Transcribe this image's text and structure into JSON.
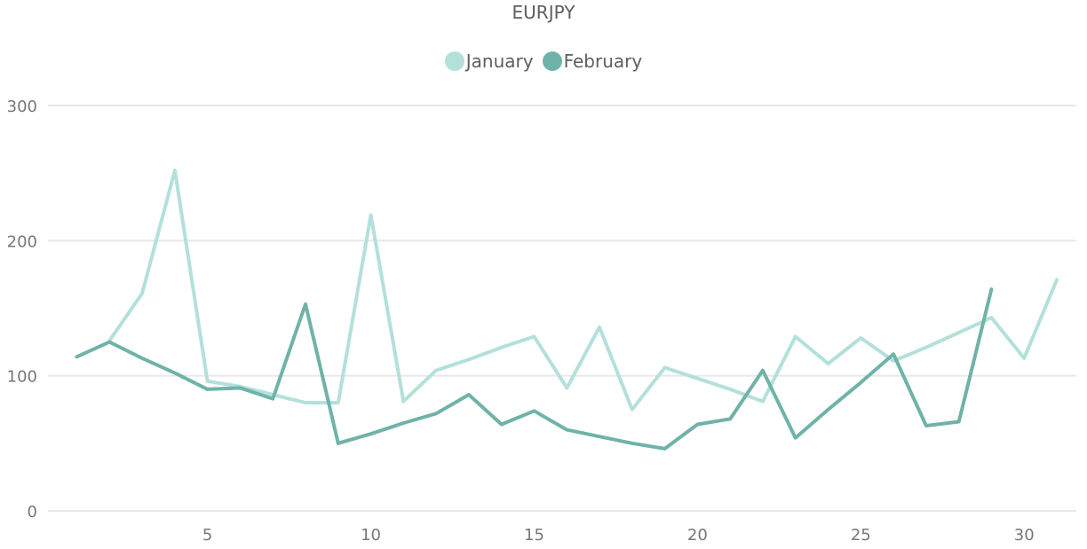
{
  "chart_data": {
    "type": "line",
    "title": "EURJPY",
    "xlabel": "",
    "ylabel": "",
    "ylim": [
      0,
      300
    ],
    "xlim": [
      1,
      31
    ],
    "grid": true,
    "legend_position": "top-center",
    "y_ticks": [
      0,
      100,
      200,
      300
    ],
    "x_ticks": [
      5,
      10,
      15,
      20,
      25,
      30
    ],
    "series": [
      {
        "name": "January",
        "color": "#b3e0db",
        "x": [
          2,
          3,
          4,
          5,
          6,
          7,
          8,
          9,
          10,
          11,
          12,
          13,
          14,
          15,
          16,
          17,
          18,
          19,
          20,
          21,
          22,
          23,
          24,
          25,
          26,
          27,
          28,
          29,
          30,
          31
        ],
        "values": [
          126,
          161,
          252,
          96,
          92,
          86,
          80,
          80,
          219,
          81,
          104,
          112,
          121,
          129,
          91,
          136,
          75,
          106,
          98,
          90,
          81,
          129,
          109,
          128,
          111,
          121,
          132,
          143,
          113,
          171
        ]
      },
      {
        "name": "February",
        "color": "#6fb3a8",
        "x": [
          1,
          2,
          3,
          4,
          5,
          6,
          7,
          8,
          9,
          10,
          11,
          12,
          13,
          14,
          15,
          16,
          17,
          18,
          19,
          20,
          21,
          22,
          23,
          24,
          25,
          26,
          27,
          28,
          29
        ],
        "values": [
          114,
          125,
          113,
          102,
          90,
          91,
          83,
          153,
          50,
          57,
          65,
          72,
          86,
          64,
          74,
          60,
          55,
          50,
          46,
          64,
          68,
          104,
          54,
          75,
          95,
          116,
          63,
          66,
          164
        ]
      }
    ]
  },
  "legend": {
    "items": [
      {
        "label": "January",
        "color": "#b3e0db"
      },
      {
        "label": "February",
        "color": "#6fb3a8"
      }
    ]
  }
}
